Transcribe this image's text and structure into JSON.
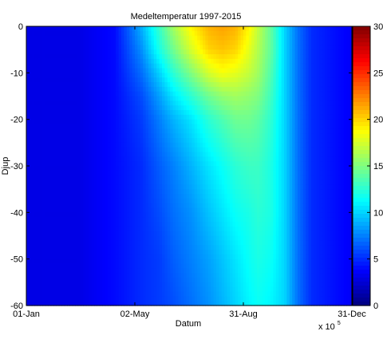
{
  "chart_data": {
    "type": "heatmap",
    "title": "Medeltemperatur 1997-2015",
    "xlabel": "Datum",
    "ylabel": "Djup",
    "x_exponent_label": "x 10",
    "x_exponent_power": "5",
    "x_ticks": [
      "01-Jan",
      "02-May",
      "31-Aug",
      "31-Dec"
    ],
    "y_ticks": [
      "0",
      "-10",
      "-20",
      "-30",
      "-40",
      "-50",
      "-60"
    ],
    "y_tick_values": [
      0,
      -10,
      -20,
      -30,
      -40,
      -50,
      -60
    ],
    "ylim": [
      -60,
      0
    ],
    "colorbar": {
      "ticks": [
        "0",
        "5",
        "10",
        "15",
        "20",
        "25",
        "30"
      ],
      "tick_values": [
        0,
        5,
        10,
        15,
        20,
        25,
        30
      ],
      "range": [
        0,
        30
      ],
      "colormap": "jet"
    },
    "day_of_year": [
      1,
      60,
      100,
      130,
      150,
      165,
      185,
      205,
      220,
      235,
      250,
      260,
      275,
      290,
      305,
      320,
      365
    ],
    "depths": [
      0,
      -5,
      -10,
      -15,
      -20,
      -30,
      -40,
      -50,
      -60
    ],
    "temperature": [
      [
        3,
        3,
        3,
        3,
        3,
        3,
        3,
        3,
        3
      ],
      [
        3,
        3,
        3,
        3,
        3,
        3,
        3,
        3,
        3
      ],
      [
        4,
        4,
        4,
        4,
        4,
        4,
        4,
        4,
        4
      ],
      [
        9,
        8,
        7,
        6,
        5.5,
        5,
        5,
        5,
        5
      ],
      [
        13,
        12,
        10,
        8.5,
        7.5,
        6.5,
        6,
        5.5,
        5.5
      ],
      [
        16,
        14.5,
        12.5,
        10.5,
        9,
        7.5,
        7,
        6.5,
        6
      ],
      [
        19,
        17.5,
        15,
        12.5,
        10.5,
        9,
        8,
        7.5,
        7
      ],
      [
        21,
        20,
        17.5,
        14.5,
        12.5,
        10.5,
        9.5,
        8.5,
        8
      ],
      [
        21.5,
        20.5,
        18.5,
        15.5,
        13.5,
        11.5,
        10.5,
        9.5,
        9
      ],
      [
        21,
        20,
        18,
        16,
        14.5,
        12.5,
        11.5,
        10.5,
        10
      ],
      [
        19,
        18,
        17,
        15.5,
        14.5,
        13,
        12,
        11.5,
        11
      ],
      [
        17,
        16.5,
        16,
        15,
        14,
        13,
        12.5,
        12,
        11.5
      ],
      [
        14,
        14,
        13.5,
        13,
        12.5,
        12,
        12,
        11.5,
        11
      ],
      [
        10,
        10,
        10,
        10,
        10,
        10,
        10,
        10,
        10
      ],
      [
        7,
        7,
        7,
        7,
        7,
        7,
        7,
        7,
        7
      ],
      [
        5,
        5,
        5,
        5,
        5,
        5,
        5,
        5,
        5
      ],
      [
        3.5,
        3.5,
        3.5,
        3.5,
        3.5,
        3.5,
        3.5,
        3.5,
        3.5
      ]
    ]
  }
}
